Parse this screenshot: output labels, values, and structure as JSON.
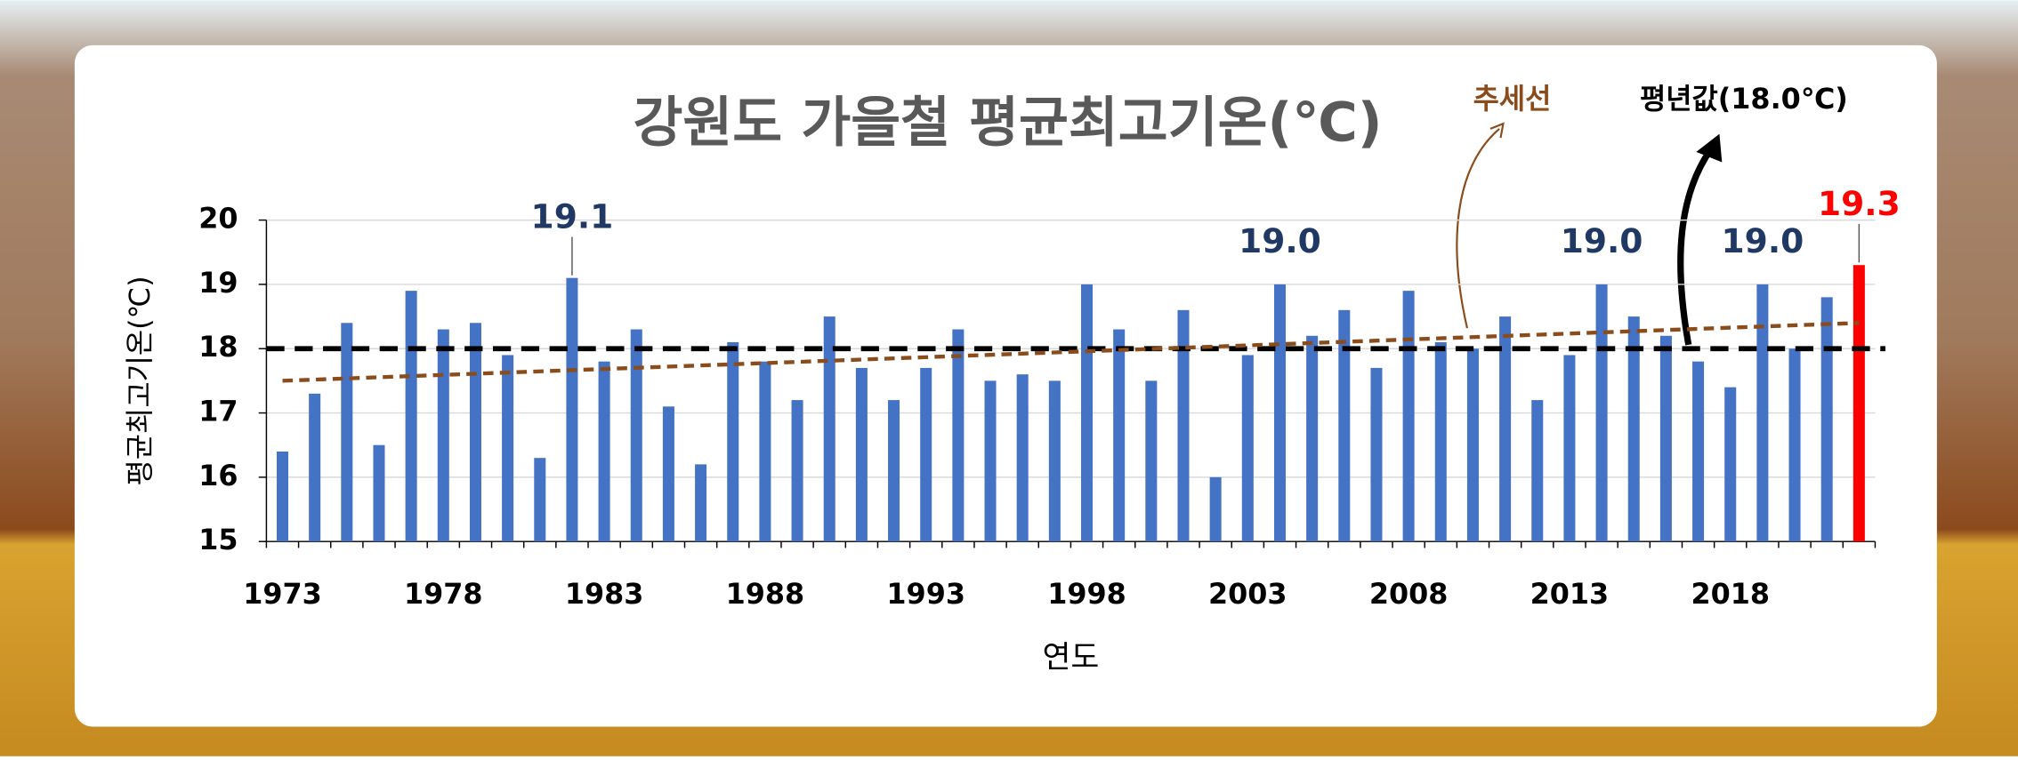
{
  "chart_data": {
    "type": "bar",
    "title": "강원도 가을철 평균최고기온(℃)",
    "y_label": "평균최고기온(℃)",
    "x_label": "연도",
    "categories": [
      "1973",
      null,
      null,
      null,
      null,
      "1978",
      null,
      null,
      null,
      null,
      "1983",
      null,
      null,
      null,
      null,
      "1988",
      null,
      null,
      null,
      null,
      "1993",
      null,
      null,
      null,
      null,
      "1998",
      null,
      null,
      null,
      null,
      "2003",
      null,
      null,
      null,
      null,
      "2008",
      null,
      null,
      null,
      null,
      "2013",
      null,
      null,
      null,
      null,
      "2018",
      null,
      null,
      null,
      null
    ],
    "values": [
      16.4,
      17.3,
      18.4,
      16.5,
      18.9,
      18.3,
      18.4,
      17.9,
      16.3,
      19.1,
      17.8,
      18.3,
      17.1,
      16.2,
      18.1,
      17.8,
      17.2,
      18.5,
      17.7,
      17.2,
      17.7,
      18.3,
      17.5,
      17.6,
      17.5,
      19.0,
      18.3,
      17.5,
      18.6,
      16.0,
      17.9,
      19.0,
      18.2,
      18.6,
      17.7,
      18.9,
      18.1,
      18.0,
      18.5,
      17.2,
      17.9,
      19.0,
      18.5,
      18.2,
      17.8,
      17.4,
      19.0,
      18.0,
      18.8,
      19.3
    ],
    "value_labels": [
      null,
      null,
      null,
      null,
      null,
      null,
      null,
      null,
      null,
      "19.1",
      null,
      null,
      null,
      null,
      null,
      null,
      null,
      null,
      null,
      null,
      null,
      null,
      null,
      null,
      null,
      null,
      null,
      null,
      null,
      null,
      null,
      "19.0",
      null,
      null,
      null,
      null,
      null,
      null,
      null,
      null,
      null,
      "19.0",
      null,
      null,
      null,
      null,
      "19.0",
      null,
      null,
      "19.3"
    ],
    "color": "#4472c4",
    "last_color": "#ff0000",
    "label_color": "#1f3864",
    "ylim": [
      15,
      20
    ],
    "yticks": [
      15,
      16,
      17,
      18,
      19,
      20
    ],
    "grid": true,
    "reference": {
      "value": 18.0,
      "label": "평년값(18.0℃)",
      "color": "#000000"
    },
    "trend": {
      "label": "추세선",
      "start": 17.5,
      "end": 18.4,
      "color": "#8b4c1c"
    }
  }
}
